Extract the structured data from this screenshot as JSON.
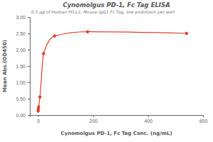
{
  "chart_data": {
    "type": "scatter",
    "title": "Cynomolgus PD-1, Fc Tag ELISA",
    "subtitle": "0.5 μg of Human PD-L1, Mouse IgG1 Fc Tag, low endotoxin per well",
    "x_label": "Cynomolgus PD-1, Fc Tag Conc. (ng/mL)",
    "y_label": "Mean Abs.(OD450)",
    "x": [
      0.25,
      0.74,
      2.22,
      6.67,
      20,
      60,
      180,
      540
    ],
    "values": [
      0.12,
      0.18,
      0.25,
      0.55,
      1.88,
      2.42,
      2.55,
      2.5
    ],
    "color": "#d9432f",
    "marker": "circle",
    "line_style": "solid",
    "xlim": [
      -30,
      600
    ],
    "xticks": [
      0,
      200,
      400,
      600
    ],
    "ylim": [
      0,
      3
    ],
    "yticks": [
      {
        "value": 0,
        "label": "0.00"
      },
      {
        "value": 0.5,
        "label": "0.50"
      },
      {
        "value": 1,
        "label": "1.00"
      },
      {
        "value": 1.5,
        "label": "1.50"
      },
      {
        "value": 2,
        "label": "2.00"
      },
      {
        "value": 2.5,
        "label": "2.50"
      },
      {
        "value": 3,
        "label": "3.00"
      }
    ],
    "grid": false
  }
}
